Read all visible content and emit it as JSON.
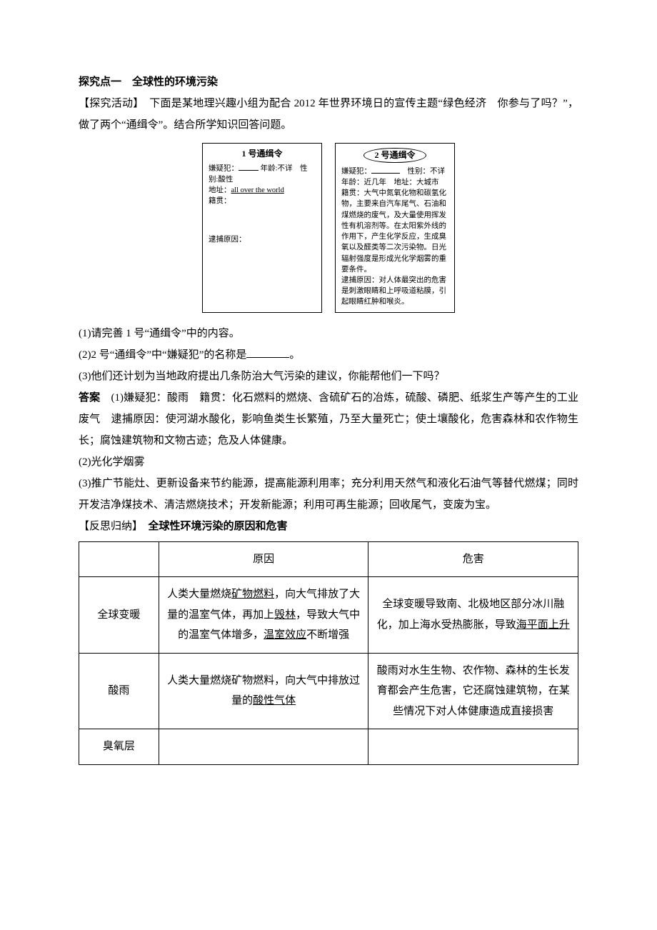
{
  "section": {
    "point_label": "探究点一",
    "point_title": "全球性的环境污染"
  },
  "activity": {
    "label": "【探究活动】",
    "intro_a": "下面是某地理兴趣小组为配合 2012 年世界环境日的宣传主题“绿色经济　你参与了吗？”，做了两个“通缉令”。结合所学知识回答问题。"
  },
  "warrant1": {
    "title": "1 号通缉令",
    "suspect_label": "嫌疑犯：",
    "age": "年龄:不详",
    "sex": "性别:酸性",
    "addr_label": "地址：",
    "addr_value": "all over the world",
    "origin_label": "籍贯：",
    "arrest_label": "逮捕原因："
  },
  "warrant2": {
    "title": "2 号通缉令",
    "suspect_label": "嫌疑犯：",
    "sex": "性别：不详",
    "age_label": "年龄：",
    "age_value": "近几年",
    "addr_label": "地址：",
    "addr_value": "大城市",
    "origin_label": "籍贯：",
    "origin_text": "大气中氮氧化物和碳氢化物，主要来自汽车尾气、石油和煤燃烧的废气，及大量使用挥发性有机溶剂等。在太阳紫外线的作用下，产生化学反应，生成臭氧以及醛类等二次污染物。日光辐射强度是形成光化学烟雾的重要条件。",
    "arrest_label": "逮捕原因：",
    "arrest_text": "对人体最突出的危害是刺激眼睛和上呼吸道粘膜，引起眼睛红肿和喉炎。"
  },
  "questions": {
    "q1": "(1)请完善 1 号“通缉令”中的内容。",
    "q2_a": "(2)2 号“通缉令”中“嫌疑犯”的名称是",
    "q2_b": "。",
    "q3": "(3)他们还计划为当地政府提出几条防治大气污染的建议，你能帮他们一下吗？"
  },
  "answers": {
    "label": "答案",
    "a1": "(1)嫌疑犯：酸雨　籍贯：化石燃料的燃烧、含硫矿石的冶炼，硫酸、磷肥、纸浆生产等产生的工业废气　逮捕原因：使河湖水酸化，影响鱼类生长繁殖，乃至大量死亡；使土壤酸化，危害森林和农作物生长；腐蚀建筑物和文物古迹；危及人体健康。",
    "a2": "(2)光化学烟雾",
    "a3": "(3)推广节能灶、更新设备来节约能源，提高能源利用率；充分利用天然气和液化石油气等替代燃煤；同时开发洁净煤技术、清洁燃烧技术；开发新能源；利用可再生能源；回收尾气，变废为宝。"
  },
  "reflection": {
    "label": "【反思归纳】",
    "title": "全球性环境污染的原因和危害"
  },
  "table": {
    "headers": {
      "cause": "原因",
      "harm": "危害"
    },
    "rows": [
      {
        "label": "全球变暖",
        "cause_parts": [
          "人类大量燃烧",
          "矿物燃料",
          "，向大气排放了大量的温室气体，再加上",
          "毁林",
          "，导致大气中的温室气体增多，",
          "温室效应",
          "不断增强"
        ],
        "harm_parts": [
          "全球变暖导致南、北极地区部分冰川融化，加上海水受热膨胀，导致",
          "海平面上升"
        ]
      },
      {
        "label": "酸雨",
        "cause_parts": [
          "人类大量燃烧矿物燃料，向大气中排放过量的",
          "酸性气体"
        ],
        "harm_plain": "酸雨对水生生物、农作物、森林的生长发育都会产生危害，它还腐蚀建筑物，在某些情况下对人体健康造成直接损害"
      },
      {
        "label": "臭氧层",
        "cause_plain": "",
        "harm_plain": ""
      }
    ]
  }
}
